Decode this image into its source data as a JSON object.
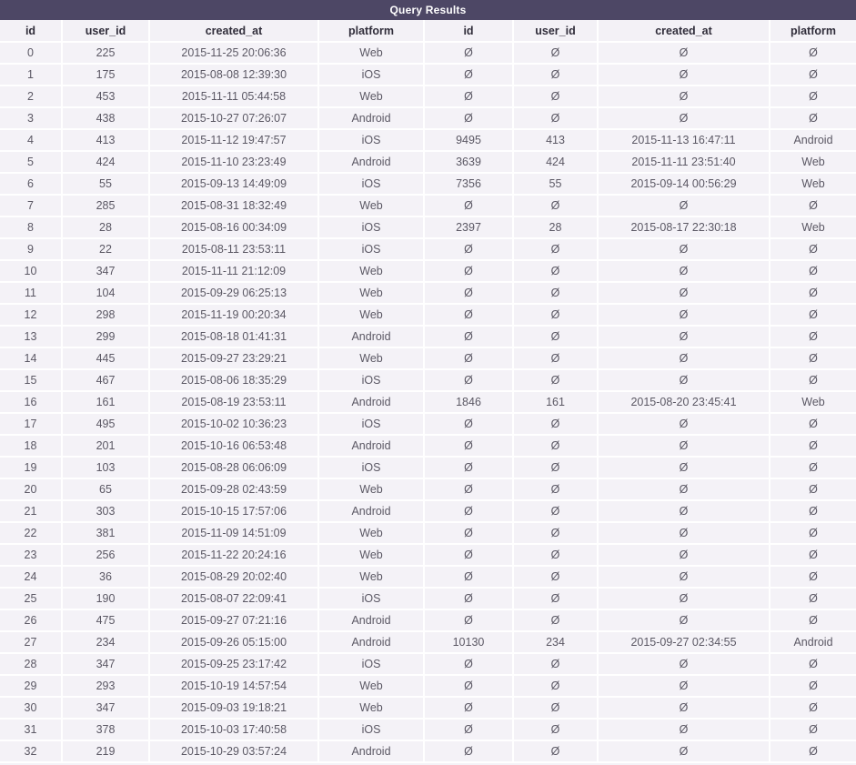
{
  "title": "Query Results",
  "colors": {
    "title_bar_bg": "#4d4765",
    "title_text": "#ffffff",
    "header_bg": "#f3f1f6",
    "header_text": "#302d3a",
    "cell_bg": "#f4f2f7",
    "cell_text": "#5b5864",
    "grid_line": "#ffffff"
  },
  "table": {
    "columns": [
      "id",
      "user_id",
      "created_at",
      "platform",
      "id",
      "user_id",
      "created_at",
      "platform"
    ],
    "null_symbol": "Ø",
    "rows": [
      [
        0,
        225,
        "2015-11-25 20:06:36",
        "Web",
        null,
        null,
        null,
        null
      ],
      [
        1,
        175,
        "2015-08-08 12:39:30",
        "iOS",
        null,
        null,
        null,
        null
      ],
      [
        2,
        453,
        "2015-11-11 05:44:58",
        "Web",
        null,
        null,
        null,
        null
      ],
      [
        3,
        438,
        "2015-10-27 07:26:07",
        "Android",
        null,
        null,
        null,
        null
      ],
      [
        4,
        413,
        "2015-11-12 19:47:57",
        "iOS",
        9495,
        413,
        "2015-11-13 16:47:11",
        "Android"
      ],
      [
        5,
        424,
        "2015-11-10 23:23:49",
        "Android",
        3639,
        424,
        "2015-11-11 23:51:40",
        "Web"
      ],
      [
        6,
        55,
        "2015-09-13 14:49:09",
        "iOS",
        7356,
        55,
        "2015-09-14 00:56:29",
        "Web"
      ],
      [
        7,
        285,
        "2015-08-31 18:32:49",
        "Web",
        null,
        null,
        null,
        null
      ],
      [
        8,
        28,
        "2015-08-16 00:34:09",
        "iOS",
        2397,
        28,
        "2015-08-17 22:30:18",
        "Web"
      ],
      [
        9,
        22,
        "2015-08-11 23:53:11",
        "iOS",
        null,
        null,
        null,
        null
      ],
      [
        10,
        347,
        "2015-11-11 21:12:09",
        "Web",
        null,
        null,
        null,
        null
      ],
      [
        11,
        104,
        "2015-09-29 06:25:13",
        "Web",
        null,
        null,
        null,
        null
      ],
      [
        12,
        298,
        "2015-11-19 00:20:34",
        "Web",
        null,
        null,
        null,
        null
      ],
      [
        13,
        299,
        "2015-08-18 01:41:31",
        "Android",
        null,
        null,
        null,
        null
      ],
      [
        14,
        445,
        "2015-09-27 23:29:21",
        "Web",
        null,
        null,
        null,
        null
      ],
      [
        15,
        467,
        "2015-08-06 18:35:29",
        "iOS",
        null,
        null,
        null,
        null
      ],
      [
        16,
        161,
        "2015-08-19 23:53:11",
        "Android",
        1846,
        161,
        "2015-08-20 23:45:41",
        "Web"
      ],
      [
        17,
        495,
        "2015-10-02 10:36:23",
        "iOS",
        null,
        null,
        null,
        null
      ],
      [
        18,
        201,
        "2015-10-16 06:53:48",
        "Android",
        null,
        null,
        null,
        null
      ],
      [
        19,
        103,
        "2015-08-28 06:06:09",
        "iOS",
        null,
        null,
        null,
        null
      ],
      [
        20,
        65,
        "2015-09-28 02:43:59",
        "Web",
        null,
        null,
        null,
        null
      ],
      [
        21,
        303,
        "2015-10-15 17:57:06",
        "Android",
        null,
        null,
        null,
        null
      ],
      [
        22,
        381,
        "2015-11-09 14:51:09",
        "Web",
        null,
        null,
        null,
        null
      ],
      [
        23,
        256,
        "2015-11-22 20:24:16",
        "Web",
        null,
        null,
        null,
        null
      ],
      [
        24,
        36,
        "2015-08-29 20:02:40",
        "Web",
        null,
        null,
        null,
        null
      ],
      [
        25,
        190,
        "2015-08-07 22:09:41",
        "iOS",
        null,
        null,
        null,
        null
      ],
      [
        26,
        475,
        "2015-09-27 07:21:16",
        "Android",
        null,
        null,
        null,
        null
      ],
      [
        27,
        234,
        "2015-09-26 05:15:00",
        "Android",
        10130,
        234,
        "2015-09-27 02:34:55",
        "Android"
      ],
      [
        28,
        347,
        "2015-09-25 23:17:42",
        "iOS",
        null,
        null,
        null,
        null
      ],
      [
        29,
        293,
        "2015-10-19 14:57:54",
        "Web",
        null,
        null,
        null,
        null
      ],
      [
        30,
        347,
        "2015-09-03 19:18:21",
        "Web",
        null,
        null,
        null,
        null
      ],
      [
        31,
        378,
        "2015-10-03 17:40:58",
        "iOS",
        null,
        null,
        null,
        null
      ],
      [
        32,
        219,
        "2015-10-29 03:57:24",
        "Android",
        null,
        null,
        null,
        null
      ]
    ]
  }
}
